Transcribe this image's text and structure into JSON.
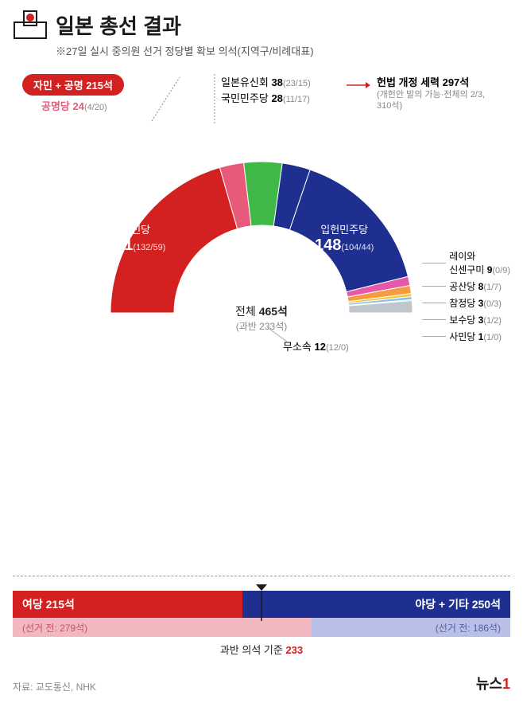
{
  "header": {
    "title": "일본 총선 결과",
    "subtitle": "※27일 실시 중의원 선거 정당별 확보 의석(지역구/비례대표)"
  },
  "coalition_pill": {
    "text": "자민 + 공명 215석",
    "bg": "#d32020"
  },
  "komei": {
    "name": "공명당",
    "seats": "24",
    "detail": "(4/20)",
    "color": "#e85a7a"
  },
  "ishin": {
    "name": "일본유신회",
    "seats": "38",
    "detail": "(23/15)"
  },
  "kokumin": {
    "name": "국민민주당",
    "seats": "28",
    "detail": "(11/17)"
  },
  "amend": {
    "title": "헌법 개정 세력 297석",
    "sub1": "(개헌안 발의 가능·전체의 2/3,",
    "sub2": "310석)",
    "arrow_color": "#d32020"
  },
  "arc": {
    "total_seats": 465,
    "segments": [
      {
        "name": "자민당",
        "seats": 191,
        "detail": "(132/59)",
        "color": "#d32020",
        "label_color": "#fff"
      },
      {
        "name": "공명당",
        "seats": 24,
        "color": "#e85a7a"
      },
      {
        "name": "일본유신회",
        "seats": 38,
        "color": "#3fb848"
      },
      {
        "name": "국민민주당",
        "seats": 28,
        "color": "#1e2f8f"
      },
      {
        "name": "입헌민주당",
        "seats": 148,
        "detail": "(104/44)",
        "color": "#1e2f8f",
        "label_color": "#fff"
      },
      {
        "name": "레이와",
        "seats": 9,
        "color": "#e858a8"
      },
      {
        "name": "공산당",
        "seats": 8,
        "color": "#f59c3e"
      },
      {
        "name": "참정당",
        "seats": 3,
        "color": "#f5c63e"
      },
      {
        "name": "보수당",
        "seats": 3,
        "color": "#7fc3e8"
      },
      {
        "name": "사민당",
        "seats": 1,
        "color": "#4a9fd8"
      },
      {
        "name": "무소속",
        "seats": 12,
        "color": "#c0c6cc"
      }
    ],
    "center": {
      "label": "전체",
      "seats": "465석",
      "sub": "(과반 233석)"
    },
    "ldp_label": {
      "name": "자민당",
      "seats": "191",
      "detail": "(132/59)"
    },
    "cdp_label": {
      "name": "입헌민주당",
      "seats": "148",
      "detail": "(104/44)"
    }
  },
  "minor_list": [
    {
      "line1": "레이와",
      "line2": "신센구미",
      "seats": "9",
      "detail": "(0/9)"
    },
    {
      "name": "공산당",
      "seats": "8",
      "detail": "(1/7)"
    },
    {
      "name": "참정당",
      "seats": "3",
      "detail": "(0/3)"
    },
    {
      "name": "보수당",
      "seats": "3",
      "detail": "(1/2)"
    },
    {
      "name": "사민당",
      "seats": "1",
      "detail": "(1/0)"
    }
  ],
  "independent": {
    "name": "무소속",
    "seats": "12",
    "detail": "(12/0)"
  },
  "bars": {
    "ruling": {
      "label": "여당 215석",
      "width_pct": 46.2,
      "bg": "#d32020"
    },
    "opp": {
      "label": "야당 + 기타 250석",
      "width_pct": 53.8,
      "bg": "#1e2f8f"
    },
    "prev_ruling": {
      "label": "(선거 전: 279석)",
      "width_pct": 60,
      "bg": "#f2b8bf",
      "fg": "#c05560"
    },
    "prev_opp": {
      "label": "(선거 전: 186석)",
      "width_pct": 40,
      "bg": "#b8c0e8",
      "fg": "#5560a0"
    },
    "majority_label": "과반 의석 기준",
    "majority_num": "233"
  },
  "footer": {
    "source": "자료: 교도통신, NHK",
    "logo": "뉴스",
    "logo_accent": "1"
  },
  "colors": {
    "divider": "#999999"
  }
}
